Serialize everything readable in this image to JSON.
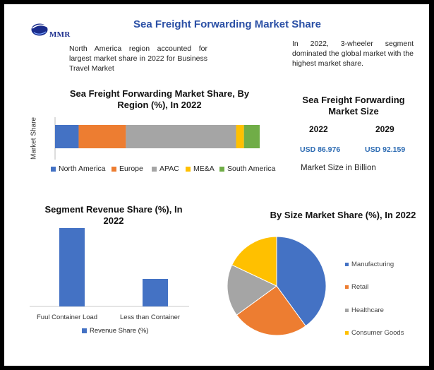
{
  "header": {
    "brand": "MMR",
    "title": "Sea Freight Forwarding Market Share"
  },
  "notes": {
    "left": "North America region accounted for largest market share in 2022 for Business Travel Market",
    "right": "In 2022, 3-wheeler segment dominated the global market with the highest market share."
  },
  "market_size": {
    "title": "Sea Freight Forwarding Market Size",
    "years": [
      "2022",
      "2029"
    ],
    "values": [
      "USD 86.976",
      "USD 92.159"
    ],
    "unit_label": "Market Size in Billion"
  },
  "colors": {
    "blue": "#4472c4",
    "orange": "#ed7d31",
    "gray": "#a5a5a5",
    "yellow": "#ffc000",
    "green": "#70ad47",
    "title_blue": "#2a4fa5"
  },
  "chart_data": [
    {
      "type": "bar",
      "orientation": "horizontal",
      "stacked": true,
      "title": "Sea Freight Forwarding Market Share, By Region (%), In 2022",
      "ylabel": "Market Share",
      "categories": [
        ""
      ],
      "series": [
        {
          "name": "North America",
          "values": [
            9
          ],
          "color": "#4472c4"
        },
        {
          "name": "Europe",
          "values": [
            18
          ],
          "color": "#ed7d31"
        },
        {
          "name": "APAC",
          "values": [
            42
          ],
          "color": "#a5a5a5"
        },
        {
          "name": "ME&A",
          "values": [
            3
          ],
          "color": "#ffc000"
        },
        {
          "name": "South America",
          "values": [
            6
          ],
          "color": "#70ad47"
        }
      ],
      "legend": "bottom"
    },
    {
      "type": "bar",
      "title": "Segment Revenue Share (%), In 2022",
      "categories": [
        "Fuul Container Load",
        "Less than Container"
      ],
      "series": [
        {
          "name": "Revenue Share (%)",
          "values": [
            74,
            26
          ],
          "color": "#4472c4"
        }
      ],
      "ylim": [
        0,
        80
      ],
      "legend": "bottom"
    },
    {
      "type": "pie",
      "title": "By Size Market Share (%), In 2022",
      "labels": [
        "Manufacturing",
        "Retail",
        "Healthcare",
        "Consumer Goods"
      ],
      "values": [
        40,
        25,
        17,
        18
      ],
      "colors": [
        "#4472c4",
        "#ed7d31",
        "#a5a5a5",
        "#ffc000"
      ],
      "legend": "right"
    }
  ]
}
